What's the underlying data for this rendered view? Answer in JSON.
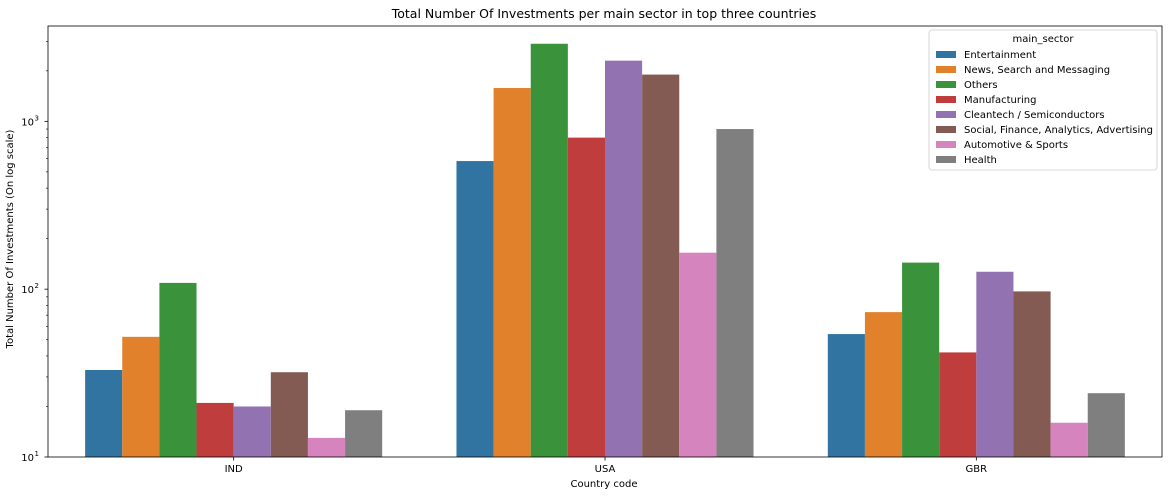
{
  "chart_data": {
    "type": "bar",
    "title": "Total Number Of Investments per main sector in top three countries",
    "xlabel": "Country code",
    "ylabel": "Total Number Of Investments (On log scale)",
    "yscale": "log",
    "ylim": [
      10,
      3700
    ],
    "yticks": [
      {
        "value": 10,
        "base": "10",
        "exp": "1"
      },
      {
        "value": 100,
        "base": "10",
        "exp": "2"
      },
      {
        "value": 1000,
        "base": "10",
        "exp": "3"
      }
    ],
    "categories": [
      "IND",
      "USA",
      "GBR"
    ],
    "legend": {
      "title": "main_sector",
      "position": "upper right"
    },
    "grid": false,
    "series": [
      {
        "name": "Entertainment",
        "color": "#3274a1",
        "values": [
          33,
          580,
          54
        ]
      },
      {
        "name": "News, Search and Messaging",
        "color": "#e1812c",
        "values": [
          52,
          1580,
          73
        ]
      },
      {
        "name": "Others",
        "color": "#3a923a",
        "values": [
          109,
          2900,
          144
        ]
      },
      {
        "name": "Manufacturing",
        "color": "#c03d3e",
        "values": [
          21,
          800,
          42
        ]
      },
      {
        "name": "Cleantech / Semiconductors",
        "color": "#9372b2",
        "values": [
          20,
          2300,
          127
        ]
      },
      {
        "name": "Social, Finance, Analytics, Advertising",
        "color": "#845b53",
        "values": [
          32,
          1900,
          97
        ]
      },
      {
        "name": "Automotive & Sports",
        "color": "#d684bd",
        "values": [
          13,
          165,
          16
        ]
      },
      {
        "name": "Health",
        "color": "#7f7f7f",
        "values": [
          19,
          900,
          24
        ]
      }
    ]
  }
}
